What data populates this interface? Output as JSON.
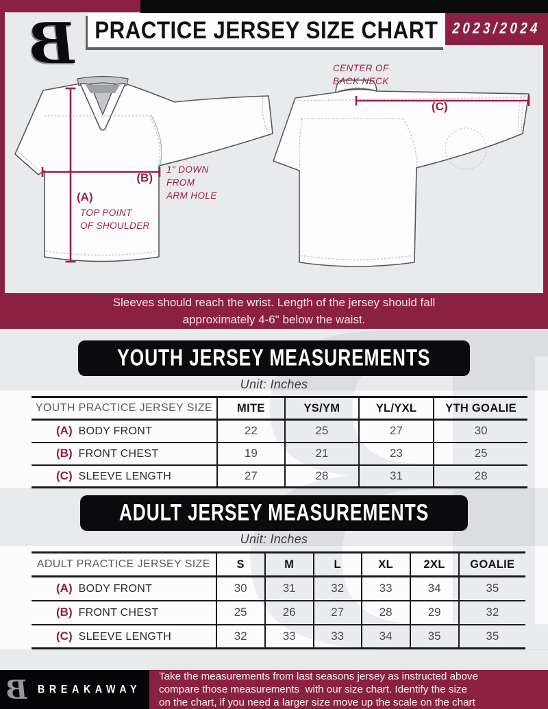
{
  "header": {
    "logo_letter": "B",
    "title": "PRACTICE JERSEY SIZE CHART",
    "season": "2023/2024"
  },
  "diagram": {
    "front": {
      "a_label": "(A)",
      "a_note": "TOP POINT\nOF SHOULDER",
      "b_label": "(B)",
      "b_note": "1\" DOWN\nFROM\nARM HOLE"
    },
    "back": {
      "c_label": "(C)",
      "c_note": "CENTER OF\nBACK NECK"
    }
  },
  "notice": "Sleeves should reach the wrist. Length of the jersey should fall\napproximately 4-6\" below the waist.",
  "sections": [
    {
      "id": "youth",
      "heading": "YOUTH JERSEY MEASUREMENTS",
      "unit": "Unit: Inches",
      "table": {
        "corner": "YOUTH PRACTICE JERSEY SIZE",
        "sizes": [
          "MITE",
          "YS/YM",
          "YL/YXL",
          "YTH GOALIE"
        ],
        "rows": [
          {
            "key": "(A)",
            "label": "BODY FRONT",
            "values": [
              "22",
              "25",
              "27",
              "30"
            ]
          },
          {
            "key": "(B)",
            "label": "FRONT CHEST",
            "values": [
              "19",
              "21",
              "23",
              "25"
            ]
          },
          {
            "key": "(C)",
            "label": "SLEEVE LENGTH",
            "values": [
              "27",
              "28",
              "31",
              "28"
            ]
          }
        ]
      }
    },
    {
      "id": "adult",
      "heading": "ADULT JERSEY MEASUREMENTS",
      "unit": "Unit: Inches",
      "table": {
        "corner": "ADULT PRACTICE JERSEY SIZE",
        "sizes": [
          "S",
          "M",
          "L",
          "XL",
          "2XL",
          "GOALIE"
        ],
        "rows": [
          {
            "key": "(A)",
            "label": "BODY FRONT",
            "values": [
              "30",
              "31",
              "32",
              "33",
              "34",
              "35"
            ]
          },
          {
            "key": "(B)",
            "label": "FRONT CHEST",
            "values": [
              "25",
              "26",
              "27",
              "28",
              "29",
              "32"
            ]
          },
          {
            "key": "(C)",
            "label": "SLEEVE LENGTH",
            "values": [
              "32",
              "33",
              "33",
              "34",
              "35",
              "35"
            ]
          }
        ]
      }
    }
  ],
  "footer": {
    "logo_letter": "B",
    "brand": "BREAKAWAY",
    "note": "Take the measurements from last seasons jersey as instructed above\ncompare those measurements  with our size chart. Identify the size\non the chart, if you need a larger size move up the scale on the chart"
  },
  "colors": {
    "maroon": "#8B2142",
    "annotation_red": "#A11E42",
    "black": "#0B0B0D",
    "background": "#E9EAEC"
  }
}
